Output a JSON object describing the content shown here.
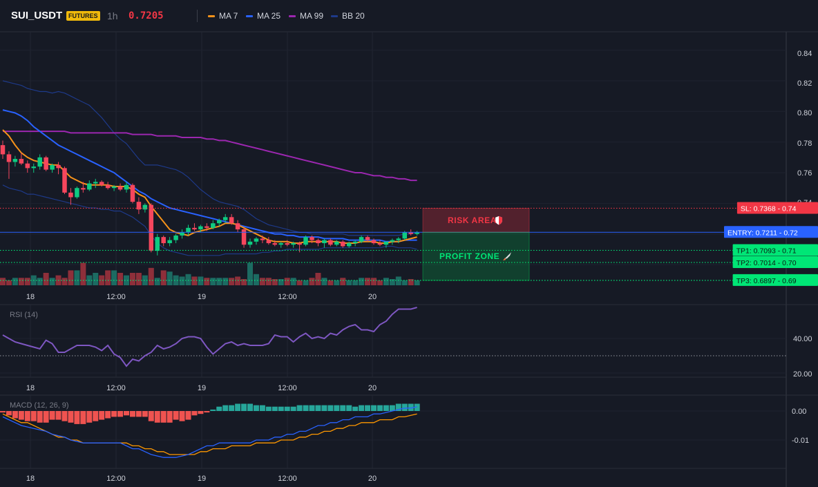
{
  "header": {
    "symbol": "SUI_USDT",
    "badge": "FUTURES",
    "interval": "1h",
    "price": "0.7205",
    "legend": [
      {
        "label": "MA 7",
        "color": "#f7931a"
      },
      {
        "label": "MA 25",
        "color": "#2962ff"
      },
      {
        "label": "MA 99",
        "color": "#9c27b0"
      },
      {
        "label": "BB 20",
        "color": "#1e3a8a"
      }
    ]
  },
  "colors": {
    "up": "#0ecb81",
    "down": "#f6465d",
    "ma7": "#f7931a",
    "ma25": "#2962ff",
    "ma99": "#9c27b0",
    "bb": "#1e3a8a",
    "rsi": "#7e57c2",
    "macd": "#2962ff",
    "signal": "#ff9800",
    "hist_pos": "#26a69a",
    "hist_neg": "#ef5350"
  },
  "chart_data": [
    {
      "type": "candlestick",
      "x_labels": [
        "18",
        "12:00",
        "19",
        "12:00",
        "20"
      ],
      "price_axis": [
        "0.84",
        "0.82",
        "0.80",
        "0.78",
        "0.76",
        "0.74",
        "0.72",
        "0.70"
      ],
      "ylim": [
        0.6865,
        0.852
      ],
      "candles": [
        [
          0.778,
          0.781,
          0.769,
          0.772
        ],
        [
          0.772,
          0.774,
          0.756,
          0.767
        ],
        [
          0.767,
          0.771,
          0.764,
          0.769
        ],
        [
          0.769,
          0.773,
          0.765,
          0.766
        ],
        [
          0.766,
          0.768,
          0.76,
          0.763
        ],
        [
          0.763,
          0.766,
          0.76,
          0.764
        ],
        [
          0.764,
          0.772,
          0.762,
          0.77
        ],
        [
          0.77,
          0.771,
          0.761,
          0.762
        ],
        [
          0.762,
          0.766,
          0.76,
          0.765
        ],
        [
          0.765,
          0.767,
          0.759,
          0.763
        ],
        [
          0.763,
          0.764,
          0.746,
          0.747
        ],
        [
          0.747,
          0.75,
          0.739,
          0.744
        ],
        [
          0.744,
          0.751,
          0.743,
          0.75
        ],
        [
          0.75,
          0.754,
          0.747,
          0.749
        ],
        [
          0.749,
          0.755,
          0.748,
          0.753
        ],
        [
          0.753,
          0.756,
          0.75,
          0.754
        ],
        [
          0.754,
          0.755,
          0.751,
          0.752
        ],
        [
          0.752,
          0.754,
          0.749,
          0.75
        ],
        [
          0.75,
          0.752,
          0.748,
          0.751
        ],
        [
          0.751,
          0.753,
          0.748,
          0.749
        ],
        [
          0.749,
          0.754,
          0.747,
          0.752
        ],
        [
          0.752,
          0.753,
          0.74,
          0.741
        ],
        [
          0.741,
          0.744,
          0.733,
          0.736
        ],
        [
          0.736,
          0.74,
          0.734,
          0.739
        ],
        [
          0.739,
          0.74,
          0.708,
          0.709
        ],
        [
          0.709,
          0.72,
          0.706,
          0.718
        ],
        [
          0.718,
          0.719,
          0.712,
          0.714
        ],
        [
          0.714,
          0.718,
          0.712,
          0.716
        ],
        [
          0.716,
          0.72,
          0.714,
          0.719
        ],
        [
          0.719,
          0.723,
          0.717,
          0.721
        ],
        [
          0.721,
          0.726,
          0.719,
          0.724
        ],
        [
          0.724,
          0.727,
          0.722,
          0.723
        ],
        [
          0.723,
          0.726,
          0.721,
          0.725
        ],
        [
          0.725,
          0.727,
          0.722,
          0.724
        ],
        [
          0.724,
          0.729,
          0.723,
          0.727
        ],
        [
          0.727,
          0.73,
          0.725,
          0.729
        ],
        [
          0.729,
          0.733,
          0.727,
          0.731
        ],
        [
          0.731,
          0.733,
          0.726,
          0.727
        ],
        [
          0.727,
          0.729,
          0.721,
          0.723
        ],
        [
          0.723,
          0.724,
          0.711,
          0.713
        ],
        [
          0.713,
          0.717,
          0.711,
          0.715
        ],
        [
          0.715,
          0.718,
          0.713,
          0.717
        ],
        [
          0.717,
          0.719,
          0.714,
          0.716
        ],
        [
          0.716,
          0.718,
          0.713,
          0.714
        ],
        [
          0.714,
          0.716,
          0.712,
          0.713
        ],
        [
          0.713,
          0.715,
          0.711,
          0.714
        ],
        [
          0.714,
          0.716,
          0.712,
          0.713
        ],
        [
          0.713,
          0.715,
          0.711,
          0.714
        ],
        [
          0.714,
          0.715,
          0.708,
          0.713
        ],
        [
          0.713,
          0.719,
          0.712,
          0.718
        ],
        [
          0.718,
          0.719,
          0.714,
          0.716
        ],
        [
          0.716,
          0.717,
          0.712,
          0.714
        ],
        [
          0.714,
          0.717,
          0.711,
          0.716
        ],
        [
          0.716,
          0.717,
          0.712,
          0.713
        ],
        [
          0.713,
          0.716,
          0.712,
          0.715
        ],
        [
          0.715,
          0.716,
          0.711,
          0.712
        ],
        [
          0.712,
          0.715,
          0.711,
          0.714
        ],
        [
          0.714,
          0.716,
          0.712,
          0.715
        ],
        [
          0.715,
          0.719,
          0.714,
          0.718
        ],
        [
          0.718,
          0.719,
          0.715,
          0.716
        ],
        [
          0.716,
          0.717,
          0.713,
          0.714
        ],
        [
          0.714,
          0.716,
          0.712,
          0.713
        ],
        [
          0.713,
          0.715,
          0.711,
          0.715
        ],
        [
          0.715,
          0.717,
          0.713,
          0.716
        ],
        [
          0.716,
          0.718,
          0.714,
          0.717
        ],
        [
          0.717,
          0.722,
          0.716,
          0.721
        ],
        [
          0.721,
          0.723,
          0.719,
          0.72
        ],
        [
          0.72,
          0.722,
          0.719,
          0.721
        ]
      ],
      "ma7": [
        0.788,
        0.784,
        0.778,
        0.773,
        0.77,
        0.768,
        0.767,
        0.766,
        0.765,
        0.765,
        0.761,
        0.757,
        0.755,
        0.753,
        0.752,
        0.752,
        0.752,
        0.752,
        0.751,
        0.751,
        0.751,
        0.749,
        0.746,
        0.744,
        0.738,
        0.733,
        0.728,
        0.723,
        0.721,
        0.72,
        0.719,
        0.721,
        0.722,
        0.723,
        0.724,
        0.725,
        0.727,
        0.727,
        0.726,
        0.724,
        0.722,
        0.72,
        0.718,
        0.716,
        0.715,
        0.715,
        0.715,
        0.714,
        0.714,
        0.715,
        0.715,
        0.715,
        0.715,
        0.715,
        0.715,
        0.714,
        0.714,
        0.714,
        0.715,
        0.715,
        0.715,
        0.714,
        0.714,
        0.715,
        0.715,
        0.716,
        0.717,
        0.718
      ],
      "ma25": [
        0.801,
        0.8,
        0.799,
        0.797,
        0.794,
        0.79,
        0.787,
        0.784,
        0.781,
        0.778,
        0.776,
        0.774,
        0.772,
        0.77,
        0.768,
        0.766,
        0.764,
        0.762,
        0.76,
        0.757,
        0.754,
        0.751,
        0.748,
        0.746,
        0.743,
        0.741,
        0.739,
        0.737,
        0.736,
        0.735,
        0.734,
        0.733,
        0.732,
        0.731,
        0.73,
        0.729,
        0.728,
        0.727,
        0.726,
        0.725,
        0.724,
        0.723,
        0.722,
        0.721,
        0.72,
        0.72,
        0.719,
        0.719,
        0.718,
        0.718,
        0.718,
        0.718,
        0.717,
        0.717,
        0.717,
        0.717,
        0.716,
        0.716,
        0.716,
        0.716,
        0.716,
        0.716,
        0.715,
        0.715,
        0.715,
        0.716,
        0.716,
        0.716
      ],
      "ma99": [
        0.787,
        0.787,
        0.787,
        0.787,
        0.787,
        0.787,
        0.787,
        0.787,
        0.787,
        0.787,
        0.787,
        0.786,
        0.786,
        0.786,
        0.786,
        0.786,
        0.786,
        0.786,
        0.786,
        0.786,
        0.786,
        0.785,
        0.785,
        0.785,
        0.785,
        0.784,
        0.784,
        0.784,
        0.784,
        0.783,
        0.783,
        0.783,
        0.783,
        0.782,
        0.782,
        0.781,
        0.781,
        0.78,
        0.779,
        0.778,
        0.777,
        0.776,
        0.775,
        0.774,
        0.773,
        0.772,
        0.771,
        0.77,
        0.769,
        0.768,
        0.767,
        0.766,
        0.765,
        0.764,
        0.763,
        0.762,
        0.761,
        0.76,
        0.76,
        0.759,
        0.758,
        0.758,
        0.757,
        0.757,
        0.756,
        0.756,
        0.755,
        0.755
      ],
      "bb_upper": [
        0.82,
        0.819,
        0.818,
        0.817,
        0.815,
        0.814,
        0.813,
        0.813,
        0.812,
        0.813,
        0.812,
        0.81,
        0.808,
        0.806,
        0.804,
        0.8,
        0.796,
        0.791,
        0.786,
        0.782,
        0.779,
        0.774,
        0.769,
        0.765,
        0.765,
        0.765,
        0.764,
        0.763,
        0.762,
        0.76,
        0.757,
        0.753,
        0.749,
        0.746,
        0.743,
        0.741,
        0.74,
        0.739,
        0.738,
        0.736,
        0.733,
        0.73,
        0.728,
        0.726,
        0.725,
        0.724,
        0.723,
        0.722,
        0.721,
        0.721,
        0.72,
        0.72,
        0.72,
        0.72,
        0.72,
        0.72,
        0.719,
        0.719,
        0.719,
        0.719,
        0.719,
        0.719,
        0.719,
        0.719,
        0.719,
        0.72,
        0.72,
        0.721
      ],
      "bb_lower": [
        0.752,
        0.75,
        0.749,
        0.748,
        0.746,
        0.746,
        0.745,
        0.744,
        0.743,
        0.742,
        0.741,
        0.74,
        0.739,
        0.738,
        0.737,
        0.737,
        0.736,
        0.736,
        0.735,
        0.735,
        0.733,
        0.731,
        0.728,
        0.725,
        0.719,
        0.714,
        0.711,
        0.709,
        0.708,
        0.707,
        0.706,
        0.706,
        0.706,
        0.706,
        0.706,
        0.706,
        0.707,
        0.707,
        0.707,
        0.707,
        0.707,
        0.707,
        0.708,
        0.708,
        0.709,
        0.709,
        0.71,
        0.71,
        0.71,
        0.71,
        0.71,
        0.71,
        0.711,
        0.711,
        0.711,
        0.711,
        0.711,
        0.711,
        0.711,
        0.711,
        0.711,
        0.711,
        0.712,
        0.712,
        0.711,
        0.711,
        0.711,
        0.71
      ],
      "volume": [
        0.3,
        0.2,
        0.3,
        0.3,
        0.3,
        0.4,
        0.3,
        0.5,
        0.3,
        0.4,
        0.3,
        0.6,
        0.6,
        0.9,
        0.4,
        0.5,
        0.4,
        0.6,
        0.6,
        0.5,
        0.4,
        0.5,
        0.5,
        0.4,
        0.7,
        0.3,
        0.6,
        0.55,
        0.4,
        0.35,
        0.45,
        0.35,
        0.35,
        0.3,
        0.3,
        0.3,
        0.3,
        0.3,
        0.35,
        0.25,
        0.9,
        0.45,
        0.3,
        0.3,
        0.25,
        0.25,
        0.3,
        0.3,
        0.2,
        0.2,
        0.3,
        0.5,
        0.3,
        0.2,
        0.2,
        0.3,
        0.2,
        0.2,
        0.3,
        0.3,
        0.3,
        0.2,
        0.3,
        0.25,
        0.35,
        0.2,
        0.25,
        0.2
      ],
      "levels": [
        {
          "label": "SL: 0.7368",
          "tick": "0.74",
          "value": 0.7368,
          "color": "#f23645",
          "style": "dotted"
        },
        {
          "label": "ENTRY: 0.7211",
          "tick": "0.72",
          "value": 0.7211,
          "color": "#2962ff",
          "style": "solid"
        },
        {
          "label": "TP1: 0.7093",
          "tick": "0.71",
          "value": 0.7093,
          "color": "#00e676",
          "style": "dotted"
        },
        {
          "label": "TP2: 0.7014",
          "tick": "0.70",
          "value": 0.7014,
          "color": "#00e676",
          "style": "dotted"
        },
        {
          "label": "TP3: 0.6897",
          "tick": "0.69",
          "value": 0.6897,
          "color": "#00e676",
          "style": "dotted"
        }
      ],
      "zones": [
        {
          "label": "RISK AREA",
          "icon": "shield-icon",
          "top": 0.7368,
          "bottom": 0.7211,
          "color": "#f23645"
        },
        {
          "label": "PROFIT ZONE",
          "icon": "rocket-icon",
          "top": 0.7211,
          "bottom": 0.6897,
          "color": "#00c853"
        }
      ]
    },
    {
      "type": "line",
      "title": "RSI (14)",
      "y_ticks": [
        "40.00",
        "20.00"
      ],
      "ylim": [
        15,
        63
      ],
      "reference_level": 30,
      "values": [
        42,
        40,
        38,
        37,
        36,
        35,
        34,
        39,
        37,
        32,
        32,
        34,
        36,
        36,
        36,
        35,
        33,
        36,
        31,
        29,
        24,
        28,
        27,
        30,
        32,
        36,
        34,
        35,
        37,
        40,
        41,
        41,
        40,
        35,
        31,
        34,
        37,
        38,
        36,
        37,
        36,
        36,
        36,
        37,
        42,
        41,
        41,
        38,
        41,
        43,
        40,
        41,
        40,
        43,
        42,
        45,
        47,
        48,
        45,
        45,
        44,
        48,
        50,
        54,
        57,
        57,
        57,
        58
      ]
    },
    {
      "type": "line",
      "title": "MACD (12, 26, 9)",
      "y_ticks": [
        "0.00",
        "-0.01"
      ],
      "ylim": [
        -0.016,
        0.0035
      ],
      "macd": [
        -0.002,
        -0.003,
        -0.004,
        -0.005,
        -0.0055,
        -0.006,
        -0.0065,
        -0.007,
        -0.008,
        -0.0085,
        -0.009,
        -0.01,
        -0.0105,
        -0.011,
        -0.011,
        -0.011,
        -0.011,
        -0.011,
        -0.011,
        -0.011,
        -0.012,
        -0.013,
        -0.013,
        -0.014,
        -0.015,
        -0.0155,
        -0.016,
        -0.016,
        -0.016,
        -0.0155,
        -0.015,
        -0.014,
        -0.013,
        -0.012,
        -0.012,
        -0.011,
        -0.011,
        -0.011,
        -0.011,
        -0.011,
        -0.011,
        -0.01,
        -0.01,
        -0.01,
        -0.009,
        -0.009,
        -0.008,
        -0.008,
        -0.007,
        -0.007,
        -0.006,
        -0.005,
        -0.005,
        -0.004,
        -0.004,
        -0.003,
        -0.003,
        -0.002,
        -0.002,
        -0.002,
        -0.001,
        -0.001,
        -0.0005,
        0.0,
        0.0005,
        0.001,
        0.001,
        0.0015
      ],
      "signal": [
        -0.001,
        -0.002,
        -0.003,
        -0.004,
        -0.004,
        -0.005,
        -0.006,
        -0.007,
        -0.008,
        -0.009,
        -0.009,
        -0.01,
        -0.01,
        -0.011,
        -0.011,
        -0.011,
        -0.011,
        -0.011,
        -0.011,
        -0.011,
        -0.011,
        -0.012,
        -0.012,
        -0.013,
        -0.013,
        -0.014,
        -0.014,
        -0.015,
        -0.015,
        -0.015,
        -0.015,
        -0.015,
        -0.014,
        -0.014,
        -0.013,
        -0.013,
        -0.013,
        -0.012,
        -0.012,
        -0.012,
        -0.012,
        -0.011,
        -0.011,
        -0.011,
        -0.011,
        -0.01,
        -0.01,
        -0.01,
        -0.009,
        -0.009,
        -0.008,
        -0.008,
        -0.007,
        -0.007,
        -0.006,
        -0.006,
        -0.005,
        -0.005,
        -0.004,
        -0.004,
        -0.004,
        -0.003,
        -0.003,
        -0.003,
        -0.002,
        -0.002,
        -0.0015,
        -0.001
      ],
      "histogram": [
        -0.0005,
        -0.0015,
        -0.0025,
        -0.003,
        -0.0035,
        -0.0035,
        -0.004,
        -0.004,
        -0.003,
        -0.003,
        -0.0035,
        -0.004,
        -0.0045,
        -0.0045,
        -0.004,
        -0.0035,
        -0.003,
        -0.0025,
        -0.002,
        -0.002,
        -0.0015,
        -0.002,
        -0.002,
        -0.002,
        -0.0035,
        -0.004,
        -0.004,
        -0.004,
        -0.003,
        -0.0035,
        -0.003,
        -0.0015,
        -0.001,
        -0.0005,
        0.0005,
        0.0015,
        0.002,
        0.002,
        0.0025,
        0.0025,
        0.0025,
        0.002,
        0.002,
        0.0015,
        0.0015,
        0.0015,
        0.0015,
        0.0015,
        0.002,
        0.002,
        0.002,
        0.002,
        0.002,
        0.002,
        0.002,
        0.002,
        0.002,
        0.0015,
        0.002,
        0.002,
        0.002,
        0.002,
        0.002,
        0.002,
        0.0025,
        0.0025,
        0.0025,
        0.0025
      ]
    }
  ]
}
